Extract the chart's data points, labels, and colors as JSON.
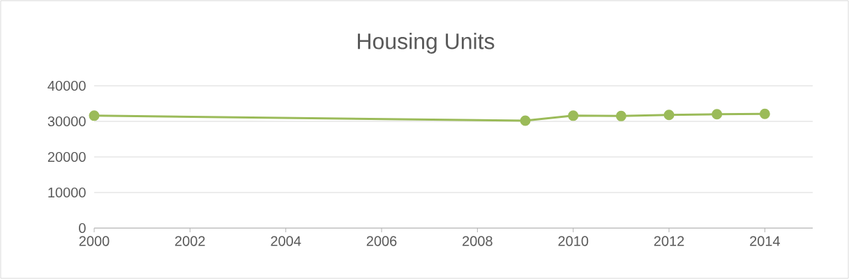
{
  "chart_data": {
    "type": "line",
    "title": "Housing Units",
    "x": [
      2000,
      2009,
      2010,
      2011,
      2012,
      2013,
      2014
    ],
    "series": [
      {
        "color": "#9bbb59",
        "values": [
          31600,
          30200,
          31600,
          31500,
          31800,
          32000,
          32100
        ]
      }
    ],
    "xlim": [
      2000,
      2015
    ],
    "xticks": [
      2000,
      2002,
      2004,
      2006,
      2008,
      2010,
      2012,
      2014
    ],
    "ylim": [
      0,
      40000
    ],
    "yticks": [
      0,
      10000,
      20000,
      30000,
      40000
    ],
    "grid": "y",
    "marker": "circle",
    "line_style": "solid"
  }
}
